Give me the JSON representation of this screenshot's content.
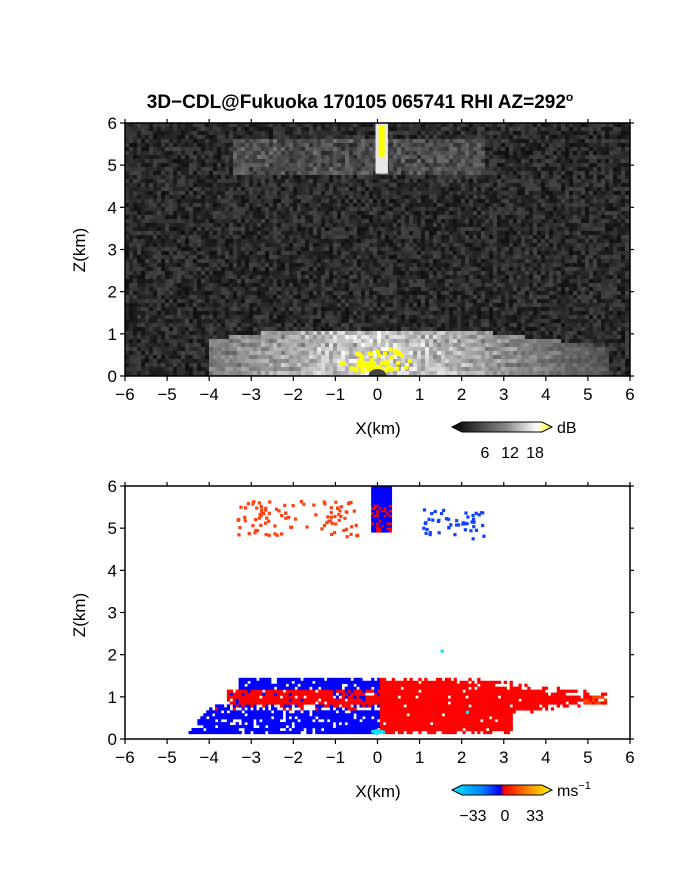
{
  "title": "3D−CDL@Fukuoka 170105 065741 RHI AZ=292",
  "title_degree_mark": "o",
  "chart_data": [
    {
      "type": "heatmap",
      "panel": "reflectivity",
      "xlabel": "X(km)",
      "ylabel": "Z(km)",
      "xlim": [
        -6,
        6
      ],
      "ylim": [
        0,
        6
      ],
      "xticks": [
        "−6",
        "−5",
        "−4",
        "−3",
        "−2",
        "−1",
        "0",
        "1",
        "2",
        "3",
        "4",
        "5",
        "6"
      ],
      "yticks": [
        "0",
        "1",
        "2",
        "3",
        "4",
        "5",
        "6"
      ],
      "colorbar": {
        "unit": "dB",
        "ticks": [
          "6",
          "12",
          "18"
        ],
        "range": [
          0,
          20
        ]
      },
      "colormap": [
        "#000000",
        "#ffffff",
        "#ffff00"
      ],
      "features": [
        {
          "label": "cloud layer",
          "x": [
            -3.4,
            2.6
          ],
          "z": [
            4.8,
            5.6
          ],
          "level_db": 7
        },
        {
          "label": "vertical beam return",
          "x": [
            0.0,
            0.2
          ],
          "z": [
            4.0,
            6.0
          ],
          "level_db": 18
        },
        {
          "label": "boundary layer",
          "x": [
            -4.0,
            5.5
          ],
          "z": [
            0.0,
            1.2
          ],
          "level_db": 14
        }
      ]
    },
    {
      "type": "heatmap",
      "panel": "doppler_velocity",
      "xlabel": "X(km)",
      "ylabel": "Z(km)",
      "xlim": [
        -6,
        6
      ],
      "ylim": [
        0,
        6
      ],
      "xticks": [
        "−6",
        "−5",
        "−4",
        "−3",
        "−2",
        "−1",
        "0",
        "1",
        "2",
        "3",
        "4",
        "5",
        "6"
      ],
      "yticks": [
        "0",
        "1",
        "2",
        "3",
        "4",
        "5",
        "6"
      ],
      "colorbar": {
        "unit": "ms",
        "unit_exponent": "−1",
        "ticks": [
          "−33",
          "0",
          "33"
        ],
        "range": [
          -40,
          40
        ]
      },
      "colormap": [
        "#00e8ff",
        "#0000ff",
        "#ff0000",
        "#ffff00"
      ],
      "features": [
        {
          "label": "approaching upper layer",
          "x": [
            -3.3,
            0.0
          ],
          "z": [
            0.85,
            1.45
          ],
          "velocity": -15
        },
        {
          "label": "receding upper layer",
          "x": [
            -3.6,
            0.0
          ],
          "z": [
            0.85,
            1.15
          ],
          "velocity": 12
        },
        {
          "label": "receding core",
          "x": [
            0.0,
            5.4
          ],
          "z": [
            0.1,
            1.45
          ],
          "velocity": 12
        },
        {
          "label": "approaching lower layer",
          "x": [
            -4.6,
            0.0
          ],
          "z": [
            0.1,
            0.7
          ],
          "velocity": -15
        },
        {
          "label": "cloud returns west",
          "x": [
            -3.4,
            -0.5
          ],
          "z": [
            4.75,
            5.6
          ],
          "velocity": 10
        },
        {
          "label": "cloud returns east",
          "x": [
            1.0,
            2.5
          ],
          "z": [
            4.7,
            5.4
          ],
          "velocity": -14
        },
        {
          "label": "vertical beam",
          "x": [
            -0.15,
            0.3
          ],
          "z": [
            4.9,
            6.0
          ],
          "velocity": -16
        }
      ]
    }
  ]
}
